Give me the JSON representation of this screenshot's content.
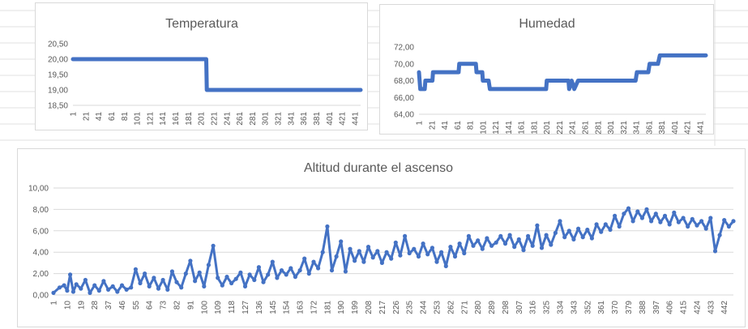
{
  "chart_data": [
    {
      "type": "line",
      "title": "Temperatura",
      "xlabel": "",
      "ylabel": "",
      "ylim": [
        18.5,
        20.5
      ],
      "y_ticks": [
        "20,50",
        "20,00",
        "19,50",
        "19,00",
        "18,50"
      ],
      "x_ticks": [
        "1",
        "21",
        "41",
        "61",
        "81",
        "101",
        "121",
        "141",
        "161",
        "181",
        "201",
        "221",
        "241",
        "261",
        "281",
        "301",
        "321",
        "341",
        "361",
        "381",
        "401",
        "421",
        "441"
      ],
      "x_range": [
        1,
        450
      ],
      "series": [
        {
          "color": "#4472C4",
          "points": [
            [
              1,
              20.0
            ],
            [
              209,
              20.0
            ],
            [
              210,
              19.0
            ],
            [
              450,
              19.0
            ]
          ]
        }
      ]
    },
    {
      "type": "line",
      "title": "Humedad",
      "xlabel": "",
      "ylabel": "",
      "ylim": [
        64.0,
        72.0
      ],
      "y_ticks": [
        "72,00",
        "70,00",
        "68,00",
        "66,00",
        "64,00"
      ],
      "x_ticks": [
        "1",
        "21",
        "41",
        "61",
        "81",
        "101",
        "121",
        "141",
        "161",
        "181",
        "201",
        "221",
        "241",
        "261",
        "281",
        "301",
        "321",
        "341",
        "361",
        "381",
        "401",
        "421",
        "441"
      ],
      "x_range": [
        1,
        450
      ],
      "series": [
        {
          "color": "#4472C4",
          "points": [
            [
              1,
              69
            ],
            [
              3,
              67
            ],
            [
              10,
              67
            ],
            [
              11,
              68
            ],
            [
              22,
              68
            ],
            [
              23,
              69
            ],
            [
              42,
              69
            ],
            [
              63,
              69
            ],
            [
              64,
              70
            ],
            [
              90,
              70
            ],
            [
              91,
              69
            ],
            [
              100,
              69
            ],
            [
              101,
              68
            ],
            [
              110,
              68
            ],
            [
              112,
              67
            ],
            [
              200,
              67
            ],
            [
              201,
              68
            ],
            [
              235,
              68
            ],
            [
              236,
              67
            ],
            [
              240,
              68
            ],
            [
              244,
              67
            ],
            [
              250,
              68
            ],
            [
              340,
              68
            ],
            [
              342,
              69
            ],
            [
              360,
              69
            ],
            [
              362,
              70
            ],
            [
              375,
              70
            ],
            [
              378,
              71
            ],
            [
              390,
              71
            ],
            [
              450,
              71
            ]
          ]
        }
      ]
    },
    {
      "type": "line",
      "title": "Altitud durante el ascenso",
      "xlabel": "",
      "ylabel": "",
      "ylim": [
        0,
        10
      ],
      "y_ticks": [
        "10,00",
        "8,00",
        "6,00",
        "4,00",
        "2,00",
        "0,00"
      ],
      "x_ticks": [
        "1",
        "10",
        "19",
        "28",
        "37",
        "46",
        "55",
        "64",
        "73",
        "82",
        "91",
        "100",
        "109",
        "118",
        "127",
        "136",
        "145",
        "154",
        "163",
        "172",
        "181",
        "190",
        "199",
        "208",
        "217",
        "226",
        "235",
        "244",
        "253",
        "262",
        "271",
        "280",
        "289",
        "298",
        "307",
        "316",
        "325",
        "334",
        "343",
        "352",
        "361",
        "370",
        "379",
        "388",
        "397",
        "406",
        "415",
        "424",
        "433",
        "442"
      ],
      "x_range": [
        1,
        448
      ],
      "trend": "noisy rise from about 0,5 to about 7,0",
      "series": [
        {
          "color": "#4472C4",
          "points": [
            [
              1,
              0.2
            ],
            [
              5,
              0.7
            ],
            [
              8,
              0.9
            ],
            [
              10,
              0.4
            ],
            [
              12,
              1.9
            ],
            [
              14,
              0.3
            ],
            [
              16,
              1.0
            ],
            [
              19,
              0.6
            ],
            [
              22,
              1.4
            ],
            [
              25,
              0.2
            ],
            [
              28,
              0.9
            ],
            [
              31,
              0.4
            ],
            [
              34,
              1.3
            ],
            [
              37,
              0.5
            ],
            [
              40,
              0.8
            ],
            [
              43,
              0.3
            ],
            [
              46,
              0.9
            ],
            [
              49,
              0.5
            ],
            [
              52,
              0.7
            ],
            [
              55,
              2.4
            ],
            [
              58,
              1.1
            ],
            [
              61,
              2.0
            ],
            [
              64,
              0.8
            ],
            [
              67,
              1.6
            ],
            [
              70,
              0.6
            ],
            [
              73,
              1.4
            ],
            [
              76,
              0.5
            ],
            [
              79,
              2.2
            ],
            [
              82,
              1.2
            ],
            [
              85,
              0.7
            ],
            [
              88,
              2.0
            ],
            [
              91,
              3.2
            ],
            [
              94,
              1.3
            ],
            [
              97,
              2.1
            ],
            [
              100,
              0.8
            ],
            [
              103,
              2.8
            ],
            [
              106,
              4.6
            ],
            [
              109,
              1.6
            ],
            [
              112,
              0.9
            ],
            [
              115,
              1.7
            ],
            [
              118,
              1.1
            ],
            [
              121,
              1.5
            ],
            [
              124,
              2.1
            ],
            [
              127,
              0.8
            ],
            [
              130,
              1.9
            ],
            [
              133,
              1.4
            ],
            [
              136,
              2.6
            ],
            [
              139,
              1.2
            ],
            [
              142,
              1.9
            ],
            [
              145,
              3.1
            ],
            [
              148,
              1.6
            ],
            [
              151,
              2.3
            ],
            [
              154,
              1.9
            ],
            [
              157,
              2.5
            ],
            [
              160,
              1.7
            ],
            [
              163,
              2.3
            ],
            [
              166,
              3.4
            ],
            [
              169,
              2.0
            ],
            [
              172,
              3.1
            ],
            [
              175,
              2.5
            ],
            [
              178,
              4.0
            ],
            [
              181,
              6.4
            ],
            [
              184,
              2.3
            ],
            [
              187,
              3.6
            ],
            [
              190,
              5.0
            ],
            [
              193,
              2.2
            ],
            [
              196,
              4.3
            ],
            [
              199,
              3.2
            ],
            [
              202,
              4.1
            ],
            [
              205,
              3.1
            ],
            [
              208,
              4.5
            ],
            [
              211,
              3.5
            ],
            [
              214,
              4.1
            ],
            [
              217,
              3.0
            ],
            [
              220,
              4.0
            ],
            [
              223,
              3.4
            ],
            [
              226,
              4.9
            ],
            [
              229,
              3.7
            ],
            [
              232,
              5.5
            ],
            [
              235,
              3.9
            ],
            [
              238,
              4.3
            ],
            [
              241,
              3.6
            ],
            [
              244,
              4.8
            ],
            [
              247,
              3.8
            ],
            [
              250,
              4.4
            ],
            [
              253,
              3.1
            ],
            [
              256,
              4.0
            ],
            [
              259,
              2.7
            ],
            [
              262,
              4.5
            ],
            [
              265,
              3.6
            ],
            [
              268,
              4.8
            ],
            [
              271,
              3.9
            ],
            [
              274,
              5.5
            ],
            [
              277,
              4.6
            ],
            [
              280,
              5.1
            ],
            [
              283,
              4.3
            ],
            [
              286,
              5.3
            ],
            [
              289,
              4.6
            ],
            [
              292,
              4.9
            ],
            [
              295,
              5.5
            ],
            [
              298,
              4.8
            ],
            [
              301,
              5.6
            ],
            [
              304,
              4.5
            ],
            [
              307,
              5.2
            ],
            [
              310,
              4.2
            ],
            [
              313,
              5.5
            ],
            [
              316,
              4.6
            ],
            [
              319,
              6.5
            ],
            [
              322,
              4.4
            ],
            [
              325,
              5.6
            ],
            [
              328,
              4.7
            ],
            [
              331,
              5.8
            ],
            [
              334,
              6.9
            ],
            [
              337,
              5.4
            ],
            [
              340,
              6.0
            ],
            [
              343,
              5.2
            ],
            [
              346,
              6.2
            ],
            [
              349,
              5.4
            ],
            [
              352,
              6.1
            ],
            [
              355,
              5.3
            ],
            [
              358,
              6.6
            ],
            [
              361,
              5.9
            ],
            [
              364,
              6.6
            ],
            [
              367,
              6.1
            ],
            [
              370,
              7.4
            ],
            [
              373,
              6.4
            ],
            [
              376,
              7.6
            ],
            [
              379,
              8.1
            ],
            [
              382,
              6.9
            ],
            [
              385,
              7.8
            ],
            [
              388,
              7.2
            ],
            [
              391,
              8.0
            ],
            [
              394,
              6.9
            ],
            [
              397,
              7.6
            ],
            [
              400,
              6.8
            ],
            [
              403,
              7.4
            ],
            [
              406,
              6.6
            ],
            [
              409,
              7.7
            ],
            [
              412,
              6.8
            ],
            [
              415,
              7.2
            ],
            [
              418,
              6.4
            ],
            [
              421,
              7.1
            ],
            [
              424,
              6.5
            ],
            [
              427,
              6.9
            ],
            [
              430,
              6.2
            ],
            [
              433,
              7.2
            ],
            [
              436,
              4.1
            ],
            [
              439,
              5.6
            ],
            [
              442,
              7.0
            ],
            [
              445,
              6.4
            ],
            [
              448,
              6.9
            ]
          ]
        }
      ]
    }
  ]
}
